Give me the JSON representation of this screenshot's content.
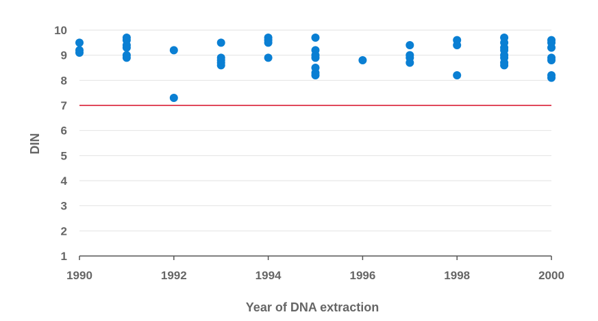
{
  "chart_data": {
    "type": "scatter",
    "title": "",
    "xlabel": "Year of DNA extraction",
    "ylabel": "DIN",
    "xlim": [
      1990,
      2000
    ],
    "ylim": [
      1,
      10
    ],
    "x_ticks": [
      "1990",
      "1992",
      "1994",
      "1996",
      "1998",
      "2000"
    ],
    "y_ticks": [
      "1",
      "2",
      "3",
      "4",
      "5",
      "6",
      "7",
      "8",
      "9",
      "10"
    ],
    "grid": true,
    "legend": "none",
    "threshold": {
      "y": 7,
      "color": "#e0485b"
    },
    "colors": {
      "points": "#0a7fd3",
      "grid": "#e2e2e2",
      "axis": "#555555"
    },
    "series": [
      {
        "points": [
          [
            1990,
            9.5
          ],
          [
            1990,
            9.2
          ],
          [
            1990,
            9.1
          ],
          [
            1991,
            9.7
          ],
          [
            1991,
            9.6
          ],
          [
            1991,
            9.4
          ],
          [
            1991,
            9.3
          ],
          [
            1991,
            9.0
          ],
          [
            1991,
            8.9
          ],
          [
            1992,
            9.2
          ],
          [
            1992,
            7.3
          ],
          [
            1993,
            9.5
          ],
          [
            1993,
            8.9
          ],
          [
            1993,
            8.8
          ],
          [
            1993,
            8.7
          ],
          [
            1993,
            8.6
          ],
          [
            1994,
            9.7
          ],
          [
            1994,
            9.6
          ],
          [
            1994,
            9.5
          ],
          [
            1994,
            8.9
          ],
          [
            1995,
            9.7
          ],
          [
            1995,
            9.2
          ],
          [
            1995,
            9.0
          ],
          [
            1995,
            8.9
          ],
          [
            1995,
            8.5
          ],
          [
            1995,
            8.3
          ],
          [
            1995,
            8.2
          ],
          [
            1996,
            8.8
          ],
          [
            1997,
            9.4
          ],
          [
            1997,
            9.0
          ],
          [
            1997,
            8.9
          ],
          [
            1997,
            8.7
          ],
          [
            1998,
            9.6
          ],
          [
            1998,
            9.4
          ],
          [
            1998,
            8.2
          ],
          [
            1999,
            9.7
          ],
          [
            1999,
            9.5
          ],
          [
            1999,
            9.3
          ],
          [
            1999,
            9.2
          ],
          [
            1999,
            9.0
          ],
          [
            1999,
            8.9
          ],
          [
            1999,
            8.7
          ],
          [
            1999,
            8.6
          ],
          [
            2000,
            9.6
          ],
          [
            2000,
            9.5
          ],
          [
            2000,
            9.3
          ],
          [
            2000,
            8.9
          ],
          [
            2000,
            8.8
          ],
          [
            2000,
            8.2
          ],
          [
            2000,
            8.1
          ]
        ]
      }
    ]
  }
}
